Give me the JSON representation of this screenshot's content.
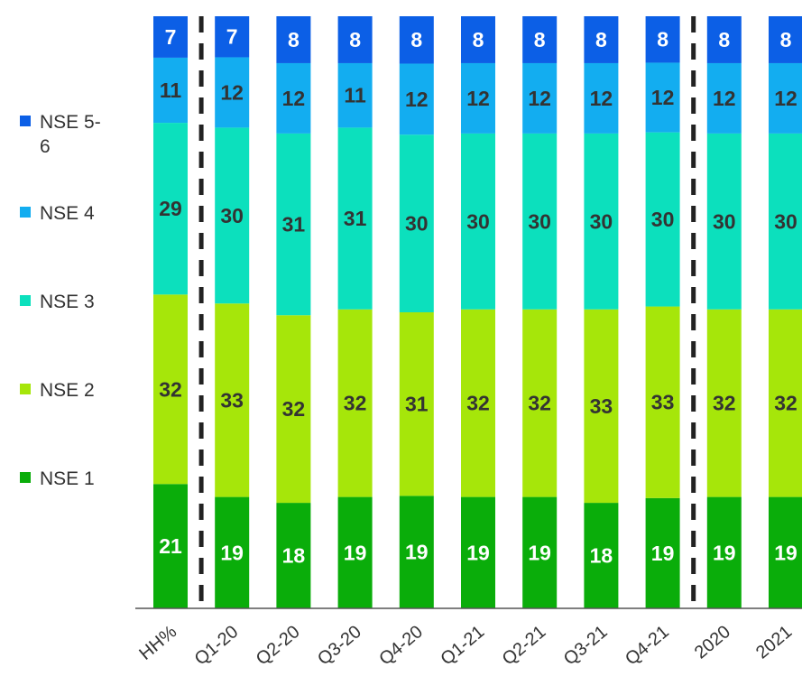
{
  "chart_data": {
    "type": "bar",
    "stacked": true,
    "normalized": true,
    "categories": [
      "HH%",
      "Q1-20",
      "Q2-20",
      "Q3-20",
      "Q4-20",
      "Q1-21",
      "Q2-21",
      "Q3-21",
      "Q4-21",
      "2020",
      "2021"
    ],
    "series": [
      {
        "name": "NSE 1",
        "color": "#0aad0a",
        "label_color": "#ffffff",
        "values": [
          21,
          19,
          18,
          19,
          19,
          19,
          19,
          18,
          19,
          19,
          19
        ]
      },
      {
        "name": "NSE 2",
        "color": "#a6e60a",
        "label_color": "#333333",
        "values": [
          32,
          33,
          32,
          32,
          31,
          32,
          32,
          33,
          33,
          32,
          32
        ]
      },
      {
        "name": "NSE 3",
        "color": "#0ce0bd",
        "label_color": "#333333",
        "values": [
          29,
          30,
          31,
          31,
          30,
          30,
          30,
          30,
          30,
          30,
          30
        ]
      },
      {
        "name": "NSE 4",
        "color": "#13adf0",
        "label_color": "#333333",
        "values": [
          11,
          12,
          12,
          11,
          12,
          12,
          12,
          12,
          12,
          12,
          12
        ]
      },
      {
        "name": "NSE 5-6",
        "color": "#0c5fe6",
        "label_color": "#ffffff",
        "values": [
          7,
          7,
          8,
          8,
          8,
          8,
          8,
          8,
          8,
          8,
          8
        ]
      }
    ],
    "legend_position": "left",
    "legend_order": [
      "NSE 5-6",
      "NSE 4",
      "NSE 3",
      "NSE 2",
      "NSE 1"
    ],
    "grid": false,
    "ylim": [
      0,
      100
    ],
    "separators_after": [
      "HH%",
      "Q4-21"
    ]
  }
}
